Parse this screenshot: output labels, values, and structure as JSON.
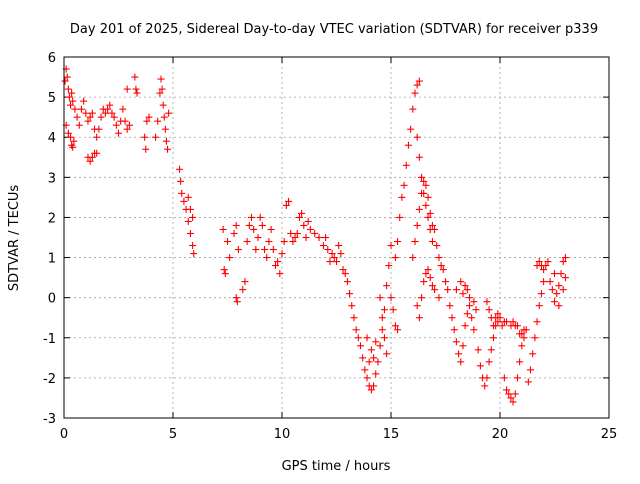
{
  "chart_data": {
    "type": "scatter",
    "title": "Day 201 of 2025, Sidereal Day-to-day VTEC variation (SDTVAR) for receiver p339",
    "xlabel": "GPS time / hours",
    "ylabel": "SDTVAR / TECUs",
    "xlim": [
      0,
      25
    ],
    "ylim": [
      -3,
      6
    ],
    "xticks": [
      "0",
      "5",
      "10",
      "15",
      "20",
      "25"
    ],
    "yticks": [
      "-3",
      "-2",
      "-1",
      "0",
      "1",
      "2",
      "3",
      "4",
      "5",
      "6"
    ],
    "grid": true,
    "marker": "+",
    "color": "#ff0000",
    "series": [
      {
        "name": "SDTVAR",
        "points": [
          [
            0.05,
            5.4
          ],
          [
            0.1,
            5.7
          ],
          [
            0.15,
            5.5
          ],
          [
            0.2,
            5.2
          ],
          [
            0.25,
            5.0
          ],
          [
            0.3,
            4.8
          ],
          [
            0.35,
            5.1
          ],
          [
            0.4,
            4.9
          ],
          [
            0.5,
            4.7
          ],
          [
            0.6,
            4.5
          ],
          [
            0.1,
            4.3
          ],
          [
            0.2,
            4.1
          ],
          [
            0.3,
            4.0
          ],
          [
            0.35,
            3.8
          ],
          [
            0.4,
            3.75
          ],
          [
            0.45,
            3.9
          ],
          [
            0.7,
            4.3
          ],
          [
            0.8,
            4.7
          ],
          [
            0.9,
            4.9
          ],
          [
            1.0,
            4.6
          ],
          [
            1.1,
            4.4
          ],
          [
            1.2,
            4.5
          ],
          [
            1.3,
            4.6
          ],
          [
            1.4,
            4.2
          ],
          [
            1.5,
            4.0
          ],
          [
            1.6,
            4.2
          ],
          [
            1.7,
            4.5
          ],
          [
            1.8,
            4.7
          ],
          [
            1.9,
            4.6
          ],
          [
            2.0,
            4.7
          ],
          [
            1.1,
            3.5
          ],
          [
            1.2,
            3.4
          ],
          [
            1.3,
            3.5
          ],
          [
            1.4,
            3.6
          ],
          [
            1.5,
            3.6
          ],
          [
            2.1,
            4.8
          ],
          [
            2.2,
            4.6
          ],
          [
            2.3,
            4.5
          ],
          [
            2.4,
            4.3
          ],
          [
            2.5,
            4.1
          ],
          [
            2.6,
            4.4
          ],
          [
            2.7,
            4.7
          ],
          [
            2.8,
            4.4
          ],
          [
            2.9,
            4.2
          ],
          [
            3.0,
            4.3
          ],
          [
            2.9,
            5.2
          ],
          [
            3.25,
            5.5
          ],
          [
            3.3,
            5.2
          ],
          [
            3.35,
            5.1
          ],
          [
            3.7,
            4.0
          ],
          [
            3.75,
            3.7
          ],
          [
            3.8,
            4.4
          ],
          [
            3.9,
            4.5
          ],
          [
            4.2,
            4.0
          ],
          [
            4.3,
            4.4
          ],
          [
            4.4,
            5.1
          ],
          [
            4.45,
            5.45
          ],
          [
            4.5,
            5.2
          ],
          [
            4.55,
            4.8
          ],
          [
            4.6,
            4.5
          ],
          [
            4.65,
            4.2
          ],
          [
            4.7,
            3.9
          ],
          [
            4.75,
            3.7
          ],
          [
            4.8,
            4.6
          ],
          [
            5.3,
            3.2
          ],
          [
            5.35,
            2.9
          ],
          [
            5.4,
            2.6
          ],
          [
            5.5,
            2.4
          ],
          [
            5.6,
            2.2
          ],
          [
            5.7,
            1.9
          ],
          [
            5.8,
            1.6
          ],
          [
            5.9,
            1.3
          ],
          [
            5.95,
            1.1
          ],
          [
            5.7,
            2.5
          ],
          [
            5.8,
            2.2
          ],
          [
            5.9,
            2.0
          ],
          [
            7.3,
            1.7
          ],
          [
            7.35,
            0.7
          ],
          [
            7.4,
            0.6
          ],
          [
            7.5,
            1.4
          ],
          [
            7.6,
            1.0
          ],
          [
            7.8,
            1.6
          ],
          [
            7.9,
            1.8
          ],
          [
            8.0,
            1.2
          ],
          [
            7.9,
            0.0
          ],
          [
            7.95,
            -0.1
          ],
          [
            8.2,
            0.2
          ],
          [
            8.3,
            0.4
          ],
          [
            8.4,
            1.4
          ],
          [
            8.5,
            1.8
          ],
          [
            8.6,
            2.0
          ],
          [
            8.7,
            1.7
          ],
          [
            8.8,
            1.2
          ],
          [
            8.9,
            1.5
          ],
          [
            9.0,
            2.0
          ],
          [
            9.1,
            1.8
          ],
          [
            9.2,
            1.2
          ],
          [
            9.3,
            1.0
          ],
          [
            9.4,
            1.4
          ],
          [
            9.5,
            1.7
          ],
          [
            9.6,
            1.2
          ],
          [
            9.7,
            0.8
          ],
          [
            9.8,
            0.9
          ],
          [
            9.9,
            0.6
          ],
          [
            10.0,
            1.1
          ],
          [
            10.1,
            1.4
          ],
          [
            10.2,
            2.3
          ],
          [
            10.3,
            2.4
          ],
          [
            10.4,
            1.6
          ],
          [
            10.5,
            1.4
          ],
          [
            10.6,
            1.5
          ],
          [
            10.7,
            1.6
          ],
          [
            10.8,
            2.0
          ],
          [
            10.9,
            2.1
          ],
          [
            11.0,
            1.8
          ],
          [
            11.1,
            1.5
          ],
          [
            11.2,
            1.9
          ],
          [
            11.3,
            1.7
          ],
          [
            11.5,
            1.6
          ],
          [
            11.7,
            1.5
          ],
          [
            11.9,
            1.3
          ],
          [
            12.0,
            1.5
          ],
          [
            12.1,
            1.2
          ],
          [
            12.2,
            0.9
          ],
          [
            12.3,
            1.1
          ],
          [
            12.4,
            1.0
          ],
          [
            12.5,
            0.9
          ],
          [
            12.6,
            1.3
          ],
          [
            12.7,
            1.1
          ],
          [
            12.8,
            0.7
          ],
          [
            12.9,
            0.6
          ],
          [
            13.0,
            0.4
          ],
          [
            13.1,
            0.1
          ],
          [
            13.2,
            -0.2
          ],
          [
            13.3,
            -0.5
          ],
          [
            13.4,
            -0.8
          ],
          [
            13.5,
            -1.0
          ],
          [
            13.6,
            -1.2
          ],
          [
            13.7,
            -1.5
          ],
          [
            13.8,
            -1.8
          ],
          [
            13.9,
            -2.0
          ],
          [
            14.0,
            -2.2
          ],
          [
            14.1,
            -2.3
          ],
          [
            14.2,
            -2.2
          ],
          [
            14.3,
            -1.9
          ],
          [
            14.4,
            -1.6
          ],
          [
            14.5,
            -1.2
          ],
          [
            14.6,
            -0.8
          ],
          [
            14.7,
            -0.3
          ],
          [
            14.8,
            0.3
          ],
          [
            14.9,
            0.8
          ],
          [
            15.0,
            1.3
          ],
          [
            14.5,
            0.0
          ],
          [
            14.6,
            -0.5
          ],
          [
            14.7,
            -1.0
          ],
          [
            14.8,
            -1.4
          ],
          [
            14.0,
            -1.6
          ],
          [
            14.1,
            -1.3
          ],
          [
            14.2,
            -1.5
          ],
          [
            14.3,
            -1.1
          ],
          [
            13.9,
            -1.0
          ],
          [
            15.0,
            0.0
          ],
          [
            15.1,
            -0.3
          ],
          [
            15.2,
            -0.7
          ],
          [
            15.3,
            -0.8
          ],
          [
            15.2,
            1.0
          ],
          [
            15.3,
            1.4
          ],
          [
            15.4,
            2.0
          ],
          [
            15.5,
            2.5
          ],
          [
            15.6,
            2.8
          ],
          [
            15.7,
            3.3
          ],
          [
            15.8,
            3.8
          ],
          [
            15.9,
            4.2
          ],
          [
            16.0,
            4.7
          ],
          [
            16.1,
            5.1
          ],
          [
            16.2,
            5.3
          ],
          [
            16.3,
            5.4
          ],
          [
            16.2,
            4.0
          ],
          [
            16.3,
            3.5
          ],
          [
            16.4,
            3.0
          ],
          [
            16.5,
            2.6
          ],
          [
            16.6,
            2.3
          ],
          [
            16.7,
            2.0
          ],
          [
            16.8,
            1.7
          ],
          [
            16.9,
            1.4
          ],
          [
            16.0,
            1.0
          ],
          [
            16.1,
            1.4
          ],
          [
            16.2,
            1.8
          ],
          [
            16.3,
            2.2
          ],
          [
            16.4,
            2.6
          ],
          [
            16.5,
            2.9
          ],
          [
            16.6,
            2.8
          ],
          [
            16.7,
            2.5
          ],
          [
            16.8,
            2.1
          ],
          [
            16.9,
            1.8
          ],
          [
            16.2,
            -0.2
          ],
          [
            16.3,
            -0.5
          ],
          [
            16.4,
            0.0
          ],
          [
            16.5,
            0.4
          ],
          [
            16.6,
            0.6
          ],
          [
            16.7,
            0.7
          ],
          [
            16.8,
            0.5
          ],
          [
            16.9,
            0.3
          ],
          [
            17.0,
            0.2
          ],
          [
            17.2,
            0.0
          ],
          [
            17.0,
            1.7
          ],
          [
            17.1,
            1.3
          ],
          [
            17.2,
            1.0
          ],
          [
            17.3,
            0.8
          ],
          [
            17.4,
            0.7
          ],
          [
            17.5,
            0.4
          ],
          [
            17.6,
            0.2
          ],
          [
            17.7,
            -0.2
          ],
          [
            17.8,
            -0.5
          ],
          [
            17.9,
            -0.8
          ],
          [
            18.0,
            -1.1
          ],
          [
            18.1,
            -1.4
          ],
          [
            18.2,
            -1.6
          ],
          [
            18.3,
            -1.2
          ],
          [
            18.4,
            -0.7
          ],
          [
            18.5,
            -0.4
          ],
          [
            18.6,
            -0.2
          ],
          [
            18.7,
            -0.5
          ],
          [
            18.8,
            -0.8
          ],
          [
            18.9,
            -0.3
          ],
          [
            18.0,
            0.2
          ],
          [
            18.2,
            0.4
          ],
          [
            18.3,
            0.1
          ],
          [
            18.4,
            0.3
          ],
          [
            18.5,
            0.2
          ],
          [
            18.6,
            0.0
          ],
          [
            18.8,
            -0.1
          ],
          [
            19.0,
            -1.3
          ],
          [
            19.1,
            -1.7
          ],
          [
            19.2,
            -2.0
          ],
          [
            19.3,
            -2.2
          ],
          [
            19.4,
            -2.0
          ],
          [
            19.5,
            -1.6
          ],
          [
            19.6,
            -1.3
          ],
          [
            19.7,
            -1.0
          ],
          [
            19.8,
            -0.7
          ],
          [
            19.9,
            -0.6
          ],
          [
            19.4,
            -0.1
          ],
          [
            19.5,
            -0.3
          ],
          [
            19.6,
            -0.5
          ],
          [
            19.7,
            -0.7
          ],
          [
            19.8,
            -0.5
          ],
          [
            19.9,
            -0.4
          ],
          [
            20.0,
            -0.5
          ],
          [
            20.1,
            -0.7
          ],
          [
            20.2,
            -0.6
          ],
          [
            20.3,
            -0.6
          ],
          [
            20.2,
            -2.0
          ],
          [
            20.3,
            -2.3
          ],
          [
            20.4,
            -2.4
          ],
          [
            20.5,
            -2.5
          ],
          [
            20.6,
            -2.6
          ],
          [
            20.7,
            -2.4
          ],
          [
            20.8,
            -2.0
          ],
          [
            20.9,
            -1.6
          ],
          [
            21.0,
            -1.2
          ],
          [
            21.1,
            -1.0
          ],
          [
            20.5,
            -0.7
          ],
          [
            20.6,
            -0.6
          ],
          [
            20.7,
            -0.7
          ],
          [
            20.8,
            -0.7
          ],
          [
            20.9,
            -0.9
          ],
          [
            21.0,
            -0.9
          ],
          [
            21.1,
            -0.8
          ],
          [
            21.2,
            -0.8
          ],
          [
            21.3,
            -2.1
          ],
          [
            21.4,
            -1.8
          ],
          [
            21.5,
            -1.4
          ],
          [
            21.6,
            -1.0
          ],
          [
            21.7,
            -0.6
          ],
          [
            21.8,
            -0.2
          ],
          [
            21.9,
            0.1
          ],
          [
            22.0,
            0.4
          ],
          [
            22.1,
            0.8
          ],
          [
            22.2,
            0.9
          ],
          [
            21.7,
            0.8
          ],
          [
            21.8,
            0.9
          ],
          [
            21.9,
            0.8
          ],
          [
            22.0,
            0.7
          ],
          [
            22.3,
            0.4
          ],
          [
            22.4,
            0.2
          ],
          [
            22.5,
            -0.1
          ],
          [
            22.6,
            0.1
          ],
          [
            22.7,
            0.3
          ],
          [
            22.8,
            0.6
          ],
          [
            22.9,
            0.9
          ],
          [
            23.0,
            1.0
          ],
          [
            22.5,
            0.6
          ],
          [
            22.7,
            -0.2
          ],
          [
            22.9,
            0.2
          ],
          [
            23.0,
            0.5
          ]
        ]
      }
    ]
  }
}
